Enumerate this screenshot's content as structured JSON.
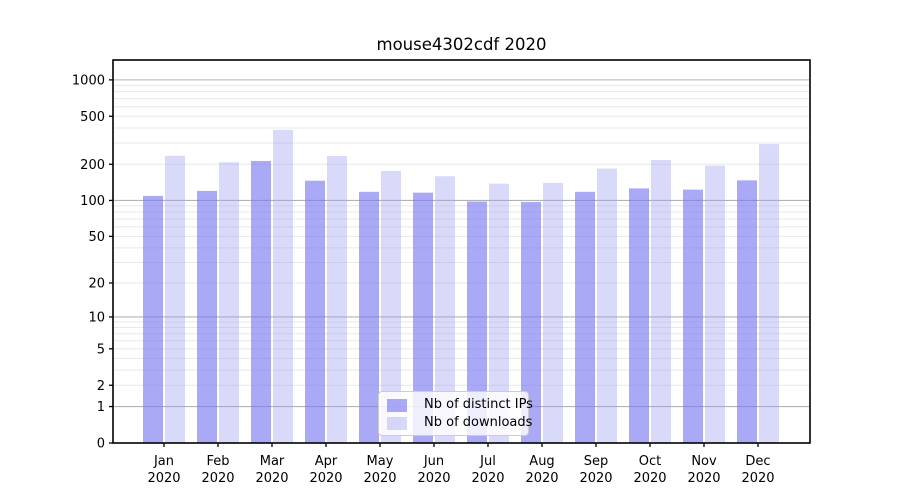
{
  "title": "mouse4302cdf 2020",
  "chart_data": {
    "type": "bar",
    "title": "mouse4302cdf 2020",
    "x_tick_months": [
      "Jan",
      "Feb",
      "Mar",
      "Apr",
      "May",
      "Jun",
      "Jul",
      "Aug",
      "Sep",
      "Oct",
      "Nov",
      "Dec"
    ],
    "x_tick_year": "2020",
    "series": [
      {
        "name": "Nb of distinct IPs",
        "color": "#a9a9f4",
        "fill": "rgba(123,123,241,0.65)",
        "values": [
          109,
          120,
          213,
          146,
          118,
          116,
          98,
          97,
          118,
          126,
          123,
          147
        ]
      },
      {
        "name": "Nb of downloads",
        "color": "#d9d9fa",
        "fill": "rgba(160,160,243,0.4)",
        "values": [
          235,
          208,
          386,
          234,
          176,
          159,
          138,
          140,
          184,
          217,
          195,
          294
        ]
      }
    ],
    "y_ticks": [
      0,
      1,
      2,
      5,
      10,
      20,
      50,
      100,
      200,
      500,
      1000
    ],
    "y_scale": "log10(1+v)",
    "y_top_value": 1460,
    "ylim": [
      0,
      1460
    ],
    "grid": true,
    "legend_position": "lower center",
    "colors": {
      "major_grid": "#b3b3b3",
      "minor_grid": "#e8e8e8",
      "axis": "#000000",
      "tick_label": "#000000",
      "background": "#ffffff"
    }
  }
}
